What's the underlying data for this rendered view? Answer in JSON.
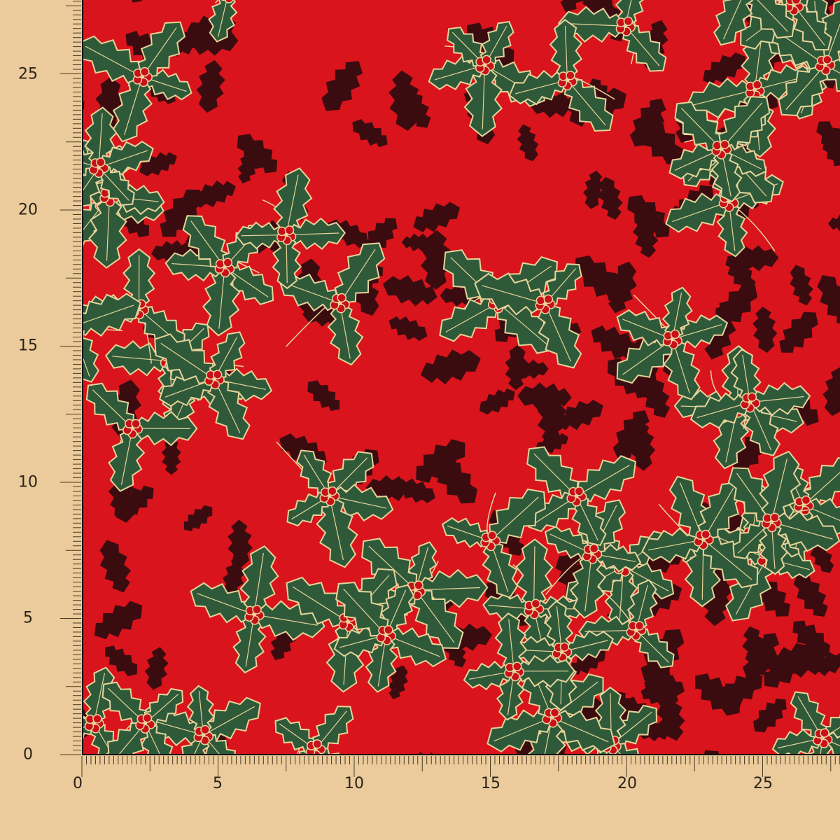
{
  "ruler": {
    "y_labels": [
      "0",
      "5",
      "10",
      "15",
      "20",
      "25"
    ],
    "x_labels": [
      "0",
      "5",
      "10",
      "15",
      "20",
      "25"
    ]
  },
  "colors": {
    "background": "#ebcb9b",
    "fabric_red": "#d9141c",
    "shadow_leaf": "#3a0c10",
    "holly_green": "#2f5a3a",
    "gold_outline": "#e6d49a",
    "berry": "#c8101a",
    "ruler_ink": "#4a3a20"
  },
  "pattern": {
    "motif": "holly-leaves-and-berries"
  }
}
